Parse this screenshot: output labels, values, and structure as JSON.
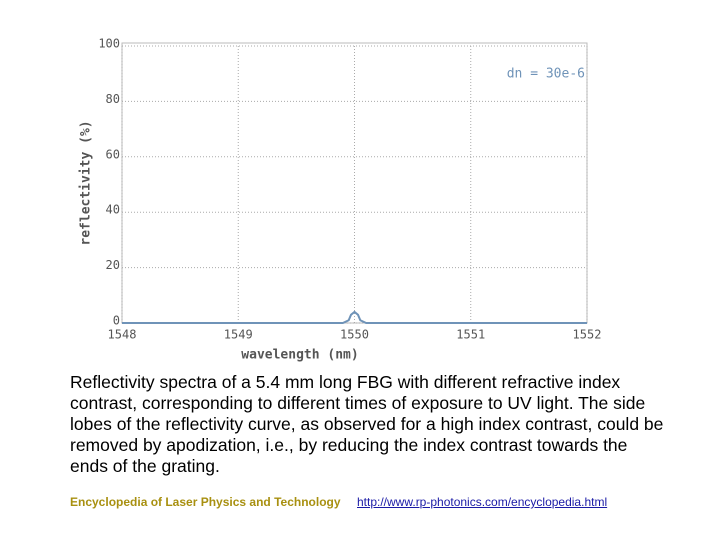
{
  "chart_data": {
    "type": "line",
    "xlabel": "wavelength (nm)",
    "ylabel": "reflectivity (%)",
    "annotation": "dn = 30e-6",
    "x": [
      1548,
      1549.9,
      1549.95,
      1549.97,
      1550,
      1550.03,
      1550.05,
      1550.1,
      1552
    ],
    "series": [
      {
        "name": "dn = 30e-6",
        "color": "#6f93b8",
        "values": [
          0,
          0,
          1,
          3,
          4,
          3,
          1,
          0,
          0
        ]
      }
    ],
    "xlim": [
      1548,
      1552
    ],
    "xticks": [
      1548,
      1549,
      1550,
      1551,
      1552
    ],
    "ylim": [
      0,
      100
    ],
    "yticks": [
      0,
      20,
      40,
      60,
      80,
      100
    ],
    "grid": true
  },
  "caption": "Reflectivity spectra of a 5.4 mm long FBG with different refractive index contrast, corresponding to different times of exposure to UV light. The side lobes of the reflectivity curve, as observed for a high index contrast, could be removed by apodization, i.e., by reducing the index contrast towards the ends of the grating.",
  "footer": {
    "left": "Encyclopedia of Laser Physics and Technology",
    "right": "http://www.rp-photonics.com/encyclopedia.html"
  }
}
